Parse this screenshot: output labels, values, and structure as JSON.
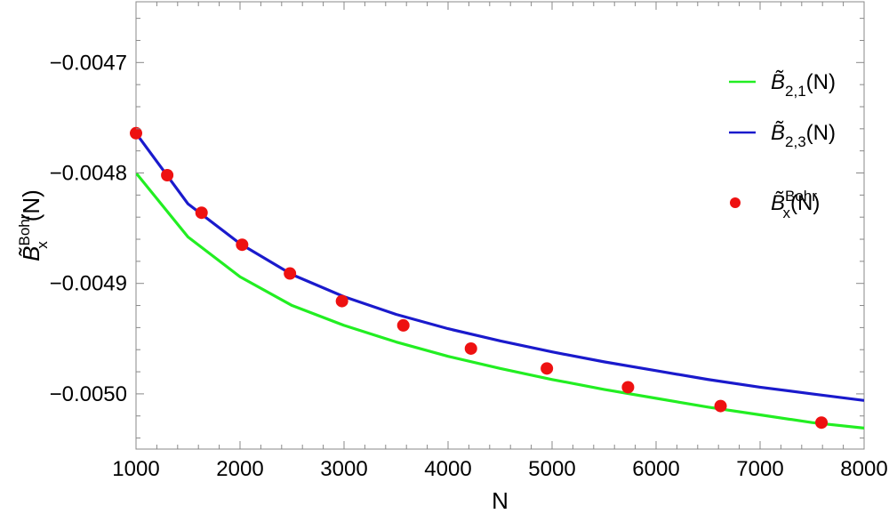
{
  "chart_data": {
    "type": "line",
    "xlabel": "N",
    "ylabel": {
      "main": "B̃",
      "sup": "Bohr",
      "sub": "x",
      "arg": "(N)"
    },
    "xlim": [
      1000,
      8000
    ],
    "ylim": [
      -0.00505,
      -0.004645
    ],
    "xticks": [
      1000,
      2000,
      3000,
      4000,
      5000,
      6000,
      7000,
      8000
    ],
    "xtick_labels": [
      "1000",
      "2000",
      "3000",
      "4000",
      "5000",
      "6000",
      "7000",
      "8000"
    ],
    "yticks": [
      -0.0047,
      -0.0048,
      -0.0049,
      -0.005
    ],
    "ytick_labels": [
      "−0.0047",
      "−0.0048",
      "−0.0049",
      "−0.0050"
    ],
    "grid": false,
    "legend_position": "right",
    "series": [
      {
        "name": {
          "main": "B̃",
          "sub": "2,1",
          "arg": "(N)"
        },
        "kind": "line",
        "color": "#22ee22",
        "x": [
          1000,
          1500,
          2000,
          2500,
          3000,
          3500,
          4000,
          4500,
          5000,
          5500,
          6000,
          6500,
          7000,
          7500,
          8000
        ],
        "values": [
          -0.0048,
          -0.004858,
          -0.004894,
          -0.00492,
          -0.004938,
          -0.004953,
          -0.004966,
          -0.004977,
          -0.004987,
          -0.004996,
          -0.005004,
          -0.005012,
          -0.005019,
          -0.005026,
          -0.005031
        ]
      },
      {
        "name": {
          "main": "B̃",
          "sub": "2,3",
          "arg": "(N)"
        },
        "kind": "line",
        "color": "#1a1acc",
        "x": [
          1000,
          1500,
          2000,
          2500,
          3000,
          3500,
          4000,
          4500,
          5000,
          5500,
          6000,
          6500,
          7000,
          7500,
          8000
        ],
        "values": [
          -0.004764,
          -0.004828,
          -0.004864,
          -0.004892,
          -0.004912,
          -0.004928,
          -0.004941,
          -0.004952,
          -0.004962,
          -0.004971,
          -0.004979,
          -0.004987,
          -0.004994,
          -0.005,
          -0.005006
        ]
      },
      {
        "name": {
          "main": "B̃",
          "sup": "Bohr",
          "sub": "x",
          "arg": "(N)"
        },
        "kind": "scatter",
        "color": "#ee1111",
        "x": [
          1000,
          1300,
          1630,
          2020,
          2480,
          2980,
          3570,
          4220,
          4950,
          5730,
          6620,
          7590
        ],
        "values": [
          -0.004764,
          -0.004802,
          -0.004836,
          -0.004865,
          -0.004891,
          -0.004916,
          -0.004938,
          -0.004959,
          -0.004977,
          -0.004994,
          -0.005011,
          -0.005026
        ]
      }
    ]
  }
}
